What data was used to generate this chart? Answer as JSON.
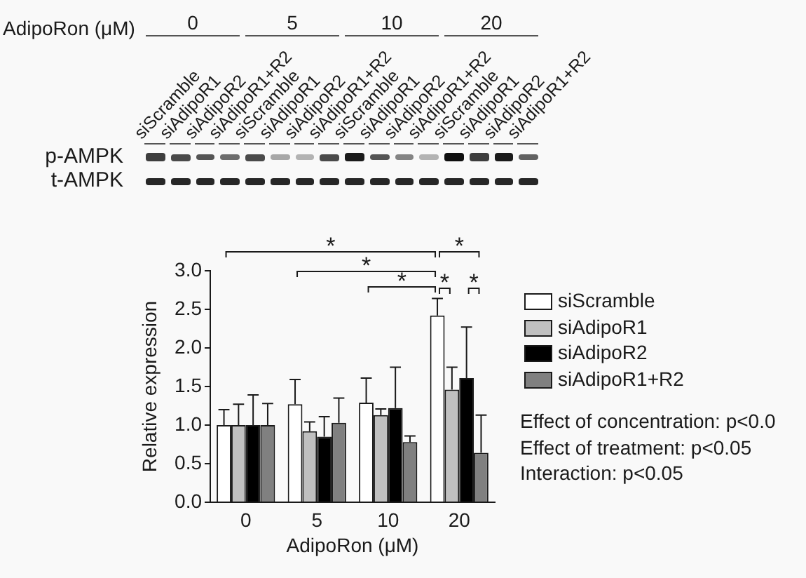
{
  "chart_data": {
    "type": "bar",
    "categories": [
      "0",
      "5",
      "10",
      "20"
    ],
    "xlabel": "AdipoRon (μM)",
    "ylabel": "Relative expression",
    "ylim": [
      0,
      3
    ],
    "yticks": [
      {
        "value": 0,
        "label": "0.0"
      },
      0.5,
      {
        "value": 1,
        "label": "1.0"
      },
      1.5,
      {
        "value": 2,
        "label": "2.0"
      },
      2.5,
      {
        "value": 3,
        "label": "3.0"
      }
    ],
    "grid": false,
    "legend": "right",
    "series": [
      {
        "name": "siScramble",
        "color": "#ffffff",
        "values": [
          1.0,
          1.27,
          1.29,
          2.42
        ],
        "errors": [
          [
            1.0,
            1.2
          ],
          [
            1.27,
            1.59
          ],
          [
            1.29,
            1.61
          ],
          [
            2.42,
            2.64
          ]
        ]
      },
      {
        "name": "siAdipoR1",
        "color": "#c0c0c0",
        "values": [
          1.0,
          0.92,
          1.13,
          1.46
        ],
        "errors": [
          [
            1.0,
            1.27
          ],
          [
            0.92,
            1.04
          ],
          [
            1.13,
            1.21
          ],
          [
            1.46,
            1.75
          ]
        ]
      },
      {
        "name": "siAdipoR2",
        "color": "#000000",
        "values": [
          1.0,
          0.85,
          1.22,
          1.61
        ],
        "errors": [
          [
            1.0,
            1.39
          ],
          [
            0.85,
            1.11
          ],
          [
            1.22,
            1.75
          ],
          [
            1.61,
            2.27
          ]
        ]
      },
      {
        "name": "siAdipoR1+R2",
        "color": "#808080",
        "values": [
          1.0,
          1.03,
          0.78,
          0.64
        ],
        "errors": [
          [
            1.0,
            1.28
          ],
          [
            1.03,
            1.35
          ],
          [
            0.78,
            0.86
          ],
          [
            0.64,
            1.13
          ]
        ]
      }
    ],
    "annotations": [
      "p-AMPK",
      "t-AMPK",
      "*",
      "*",
      "*",
      "*",
      "*",
      "*",
      "Effect of concentration: p<0.0",
      "Effect of treatment: p<0.05",
      "Interaction: p<0.05"
    ]
  }
}
